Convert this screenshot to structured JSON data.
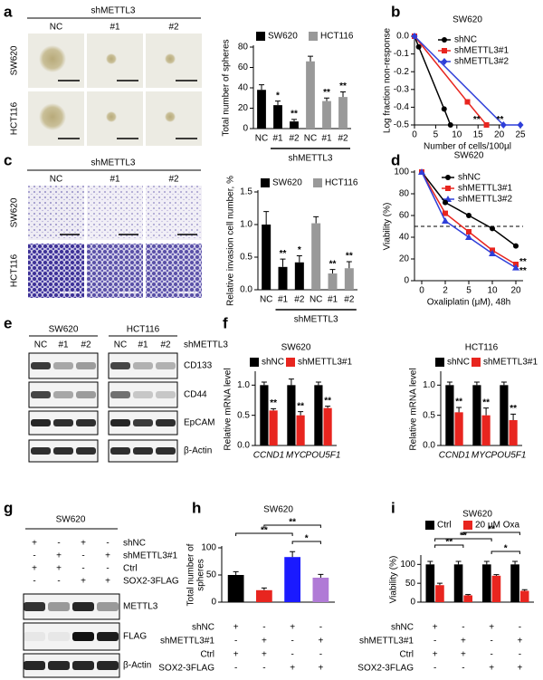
{
  "panel_labels": [
    "a",
    "b",
    "c",
    "d",
    "e",
    "f",
    "g",
    "h",
    "i"
  ],
  "panel_a": {
    "title": "shMETTL3",
    "columns": [
      "NC",
      "#1",
      "#2"
    ],
    "rows": [
      "SW620",
      "HCT116"
    ]
  },
  "panel_c": {
    "title": "shMETTL3",
    "columns": [
      "NC",
      "#1",
      "#2"
    ],
    "rows": [
      "SW620",
      "HCT116"
    ]
  },
  "panel_e": {
    "groups": [
      "SW620",
      "HCT116"
    ],
    "lanes": [
      "NC",
      "#1",
      "#2",
      "NC",
      "#1",
      "#2"
    ],
    "lane_label": "shMETTL3",
    "rows": [
      "CD133",
      "CD44",
      "EpCAM",
      "β-Actin"
    ]
  },
  "panel_g": {
    "title": "SW620",
    "conditions": [
      {
        "label": "shNC",
        "marks": [
          "+",
          "-",
          "+",
          "-"
        ]
      },
      {
        "label": "shMETTL3#1",
        "marks": [
          "-",
          "+",
          "-",
          "+"
        ]
      },
      {
        "label": "Ctrl",
        "marks": [
          "+",
          "+",
          "-",
          "-"
        ]
      },
      {
        "label": "SOX2-3FLAG",
        "marks": [
          "-",
          "-",
          "+",
          "+"
        ]
      }
    ],
    "rows": [
      "METTL3",
      "FLAG",
      "β-Actin"
    ]
  },
  "chart_data": [
    {
      "type": "bar",
      "ylabel": "Total number of spheres",
      "categories": [
        "NC",
        "#1",
        "#2",
        "NC",
        "#1",
        "#2"
      ],
      "series": [
        {
          "name": "SW620",
          "color": "#000000",
          "values": [
            38,
            23,
            7,
            null,
            null,
            null
          ],
          "errors": [
            5,
            4,
            2,
            null,
            null,
            null
          ],
          "significance": [
            null,
            "*",
            "**",
            null,
            null,
            null
          ]
        },
        {
          "name": "HCT116",
          "color": "#999999",
          "values": [
            null,
            null,
            null,
            66,
            27,
            31
          ],
          "errors": [
            null,
            null,
            null,
            5,
            3,
            5
          ],
          "significance": [
            null,
            null,
            null,
            null,
            "**",
            "**"
          ]
        }
      ],
      "group_label": "shMETTL3",
      "ylim": [
        0,
        80
      ],
      "yticks": [
        0,
        20,
        40,
        60,
        80
      ]
    },
    {
      "type": "line",
      "title": "SW620",
      "ylabel": "Log fraction non-response",
      "xlabel": "Number of cells/100µl",
      "xlim": [
        0,
        25
      ],
      "xticks": [
        0,
        5,
        10,
        15,
        20,
        25
      ],
      "ylim": [
        -0.5,
        0
      ],
      "yticks": [
        {
          "value": 0,
          "label": "0.0"
        },
        -0.1,
        -0.2,
        -0.3,
        -0.4,
        -0.5
      ],
      "series": [
        {
          "name": "shNC",
          "color": "#000000",
          "marker": "circle",
          "x": [
            0,
            1,
            7,
            8.5
          ],
          "values": [
            0,
            -0.06,
            -0.41,
            -0.5
          ]
        },
        {
          "name": "shMETTL3#1",
          "color": "#e8251f",
          "marker": "square",
          "x": [
            0,
            12.5,
            17
          ],
          "values": [
            0,
            -0.37,
            -0.5
          ]
        },
        {
          "name": "shMETTL3#2",
          "color": "#2f3fd9",
          "marker": "diamond",
          "x": [
            0,
            21,
            25
          ],
          "values": [
            0,
            -0.5,
            -0.5
          ]
        }
      ],
      "annotations": [
        {
          "text": "**",
          "x": 13,
          "y": -0.47
        },
        {
          "text": "**",
          "x": 18.5,
          "y": -0.47
        }
      ]
    },
    {
      "type": "bar",
      "ylabel": "Relative invasion cell number, %",
      "categories": [
        "NC",
        "#1",
        "#2",
        "NC",
        "#1",
        "#2"
      ],
      "series": [
        {
          "name": "SW620",
          "color": "#000000",
          "values": [
            1.0,
            0.35,
            0.42,
            null,
            null,
            null
          ],
          "errors": [
            0.2,
            0.12,
            0.1,
            null,
            null,
            null
          ],
          "significance": [
            null,
            "**",
            "*",
            null,
            null,
            null
          ]
        },
        {
          "name": "HCT116",
          "color": "#999999",
          "values": [
            null,
            null,
            null,
            1.02,
            0.25,
            0.33
          ],
          "errors": [
            null,
            null,
            null,
            0.1,
            0.06,
            0.1
          ],
          "significance": [
            null,
            null,
            null,
            null,
            "**",
            "**"
          ]
        }
      ],
      "group_label": "shMETTL3",
      "ylim": [
        0,
        1.5
      ],
      "yticks": [
        {
          "value": 0,
          "label": "0.0"
        },
        0.5,
        {
          "value": 1,
          "label": "1.0"
        },
        1.5
      ]
    },
    {
      "type": "line",
      "title": "SW620",
      "ylabel": "Viability (%)",
      "xlabel": "Oxaliplatin (μM), 48h",
      "categories": [
        "0",
        "2",
        "5",
        "10",
        "20"
      ],
      "ylim": [
        0,
        100
      ],
      "yticks": [
        0,
        20,
        40,
        60,
        80,
        100
      ],
      "series": [
        {
          "name": "shNC",
          "color": "#000000",
          "marker": "circle",
          "values": [
            100,
            72,
            60,
            48,
            32
          ]
        },
        {
          "name": "shMETTL3#1",
          "color": "#e8251f",
          "marker": "square",
          "values": [
            100,
            62,
            45,
            28,
            15
          ]
        },
        {
          "name": "shMETTL3#2",
          "color": "#2f3fd9",
          "marker": "triangle",
          "values": [
            100,
            55,
            40,
            25,
            12
          ]
        }
      ],
      "reference_line": 50,
      "annotations": [
        {
          "text": "**",
          "x": "20",
          "y": 17
        },
        {
          "text": "**",
          "x": "20",
          "y": 9
        }
      ]
    },
    {
      "type": "bar",
      "title": "SW620",
      "ylabel": "Relative mRNA level",
      "categories": [
        "CCND1",
        "MYC",
        "POU5F1"
      ],
      "italic_categories": true,
      "series": [
        {
          "name": "shNC",
          "color": "#000000",
          "values": [
            1,
            1,
            1
          ],
          "errors": [
            0.05,
            0.1,
            0.05
          ]
        },
        {
          "name": "shMETTL3#1",
          "color": "#e8251f",
          "values": [
            0.58,
            0.5,
            0.62
          ],
          "errors": [
            0.03,
            0.06,
            0.03
          ],
          "significance": [
            "**",
            "**",
            "**"
          ]
        }
      ],
      "ylim": [
        0,
        1.2
      ],
      "yticks": [
        {
          "value": 0,
          "label": "0.0"
        },
        0.5,
        {
          "value": 1,
          "label": "1.0"
        }
      ]
    },
    {
      "type": "bar",
      "title": "HCT116",
      "ylabel": "Relative mRNA level",
      "categories": [
        "CCND1",
        "MYC",
        "POU5F1"
      ],
      "italic_categories": true,
      "series": [
        {
          "name": "shNC",
          "color": "#000000",
          "values": [
            1,
            1,
            1
          ],
          "errors": [
            0.05,
            0.05,
            0.05
          ]
        },
        {
          "name": "shMETTL3#1",
          "color": "#e8251f",
          "values": [
            0.55,
            0.5,
            0.42
          ],
          "errors": [
            0.08,
            0.12,
            0.1
          ],
          "significance": [
            "**",
            "**",
            "**"
          ]
        }
      ],
      "ylim": [
        0,
        1.2
      ],
      "yticks": [
        {
          "value": 0,
          "label": "0.0"
        },
        0.5,
        {
          "value": 1,
          "label": "1.0"
        }
      ]
    },
    {
      "type": "bar",
      "title": "SW620",
      "ylabel": [
        "Total number of",
        "spheres"
      ],
      "values": [
        50,
        22,
        83,
        45
      ],
      "errors": [
        6,
        4,
        10,
        6
      ],
      "colors": [
        "#000000",
        "#e8251f",
        "#1a1aff",
        "#b07ad6"
      ],
      "ylim": [
        0,
        100
      ],
      "yticks": [
        0,
        50,
        100
      ],
      "brackets": [
        {
          "from": 1,
          "to": 3,
          "label": "**"
        },
        {
          "from": 0,
          "to": 2,
          "label": "**"
        },
        {
          "from": 2,
          "to": 3,
          "label": "*"
        }
      ],
      "conditions": [
        {
          "label": "shNC",
          "marks": [
            "+",
            "-",
            "+",
            "-"
          ]
        },
        {
          "label": "shMETTL3#1",
          "marks": [
            "-",
            "+",
            "-",
            "+"
          ]
        },
        {
          "label": "Ctrl",
          "marks": [
            "+",
            "+",
            "-",
            "-"
          ]
        },
        {
          "label": "SOX2-3FLAG",
          "marks": [
            "-",
            "-",
            "+",
            "+"
          ]
        }
      ]
    },
    {
      "type": "bar",
      "title": "SW620",
      "ylabel": "Viability (%)",
      "series": [
        {
          "name": "Ctrl",
          "color": "#000000",
          "values": [
            100,
            100,
            100,
            100
          ],
          "errors": [
            8,
            8,
            8,
            8
          ]
        },
        {
          "name": "20 μM Oxa",
          "color": "#e8251f",
          "values": [
            45,
            18,
            70,
            30
          ],
          "errors": [
            5,
            2,
            3,
            3
          ]
        }
      ],
      "ylim": [
        0,
        120
      ],
      "yticks": [
        0,
        50,
        100
      ],
      "brackets": [
        {
          "from": 1,
          "to": 3,
          "label": "**"
        },
        {
          "from": 0,
          "to": 2,
          "label": "**"
        },
        {
          "from": 0,
          "to": 1,
          "label": "**"
        },
        {
          "from": 2,
          "to": 3,
          "label": "*"
        }
      ],
      "conditions": [
        {
          "label": "shNC",
          "marks": [
            "+",
            "-",
            "+",
            "-"
          ]
        },
        {
          "label": "shMETTL3#1",
          "marks": [
            "-",
            "+",
            "-",
            "+"
          ]
        },
        {
          "label": "Ctrl",
          "marks": [
            "+",
            "+",
            "-",
            "-"
          ]
        },
        {
          "label": "SOX2-3FLAG",
          "marks": [
            "-",
            "-",
            "+",
            "+"
          ]
        }
      ]
    }
  ]
}
